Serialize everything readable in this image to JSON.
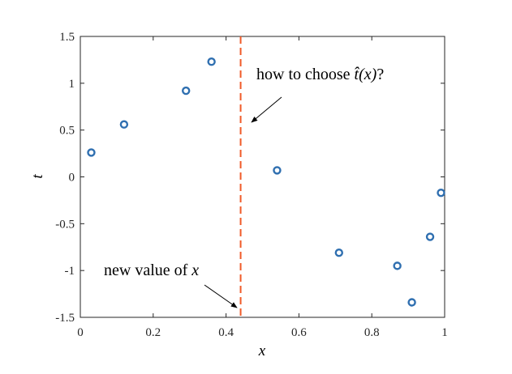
{
  "chart_data": {
    "type": "scatter",
    "xlabel": "x",
    "ylabel": "t",
    "xlim": [
      0,
      1
    ],
    "ylim": [
      -1.5,
      1.5
    ],
    "grid": false,
    "x_ticks": [
      "0",
      "0.2",
      "0.4",
      "0.6",
      "0.8",
      "1"
    ],
    "y_ticks": [
      "-1.5",
      "-1",
      "-0.5",
      "0",
      "0.5",
      "1",
      "1.5"
    ],
    "series": [
      {
        "marker": "circle-open",
        "color": "#2f6fb0",
        "points": [
          {
            "x": 0.03,
            "y": 0.26
          },
          {
            "x": 0.12,
            "y": 0.56
          },
          {
            "x": 0.29,
            "y": 0.92
          },
          {
            "x": 0.36,
            "y": 1.23
          },
          {
            "x": 0.54,
            "y": 0.07
          },
          {
            "x": 0.71,
            "y": -0.81
          },
          {
            "x": 0.87,
            "y": -0.95
          },
          {
            "x": 0.91,
            "y": -1.34
          },
          {
            "x": 0.96,
            "y": -0.64
          },
          {
            "x": 0.99,
            "y": -0.17
          }
        ]
      }
    ],
    "reference_line": {
      "orientation": "vertical",
      "x": 0.44,
      "style": "dashed",
      "color": "#f05a28"
    },
    "annotations": [
      {
        "text": "how to choose t̂(x)?",
        "math": "t̂(x)",
        "position": "upper-right"
      },
      {
        "text": "new value of x",
        "math": "x",
        "position": "lower-left"
      }
    ]
  }
}
